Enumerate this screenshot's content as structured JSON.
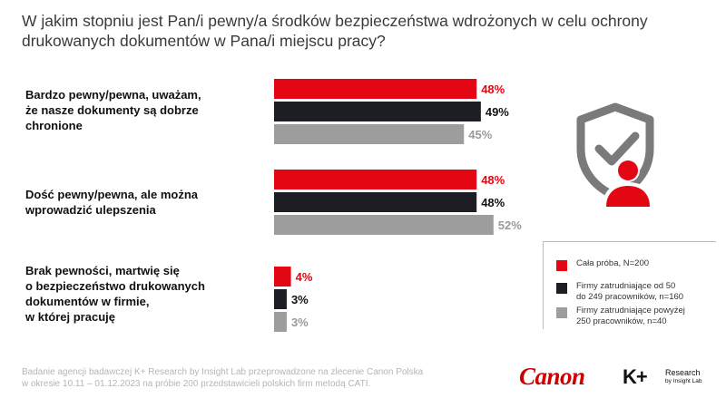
{
  "colors": {
    "series_red": "#e30613",
    "series_dark": "#1d1d24",
    "series_gray": "#9d9d9d",
    "label_red": "#e30613",
    "label_dark": "#111111",
    "label_gray": "#9a9a9a",
    "icon_gray": "#7a7a7a",
    "icon_red": "#e30613"
  },
  "chart_data": {
    "type": "bar",
    "orientation": "horizontal",
    "title": "W jakim stopniu jest Pan/i pewny/a środków bezpieczeństwa wdrożonych w celu ochrony drukowanych dokumentów w Pana/i miejscu pracy?",
    "title_lines": [
      "W jakim stopniu jest Pan/i pewny/a środków bezpieczeństwa wdrożonych w celu ochrony",
      "drukowanych dokumentów w Pana/i miejscu pracy?"
    ],
    "categories": [
      {
        "name": "Bardzo pewny/pewna, uważam, że nasze dokumenty są dobrze chronione",
        "lines": [
          "Bardzo pewny/pewna, uważam,",
          "że nasze dokumenty są dobrze",
          "chronione"
        ]
      },
      {
        "name": "Dość pewny/pewna, ale można wprowadzić ulepszenia",
        "lines": [
          "Dość pewny/pewna, ale można",
          "wprowadzić ulepszenia"
        ]
      },
      {
        "name": "Brak pewności, martwię się o bezpieczeństwo drukowanych dokumentów w firmie, w której pracuję",
        "lines": [
          "Brak pewności, martwię się",
          "o bezpieczeństwo drukowanych",
          "dokumentów w firmie,",
          "w której pracuję"
        ]
      }
    ],
    "series": [
      {
        "name": "Cała próba, N=200",
        "legend_lines": [
          "Cała próba, N=200"
        ],
        "color_key": "series_red",
        "label_key": "label_red",
        "values": [
          48,
          48,
          4
        ]
      },
      {
        "name": "Firmy zatrudniające od 50 do 249 pracowników, n=160",
        "legend_lines": [
          "Firmy zatrudniające od 50",
          "do 249 pracowników, n=160"
        ],
        "color_key": "series_dark",
        "label_key": "label_dark",
        "values": [
          49,
          48,
          3
        ]
      },
      {
        "name": "Firmy zatrudniające powyżej 250 pracowników, n=40",
        "legend_lines": [
          "Firmy zatrudniające powyżej",
          "250 pracowników, n=40"
        ],
        "color_key": "series_gray",
        "label_key": "label_gray",
        "values": [
          45,
          52,
          3
        ]
      }
    ],
    "value_suffix": "%",
    "xlim": [
      0,
      100
    ],
    "grid": false,
    "legend_position": "bottom-right"
  },
  "footer": {
    "lines": [
      "Badanie agencji badawczej K+ Research by Insight Lab przeprowadzone na zlecenie Canon Polska",
      "w okresie 10.11 – 01.12.2023 na próbie 200 przedstawicieli polskich firm metodą CATI."
    ]
  },
  "logos": {
    "canon": "Canon",
    "kplus_mark": "K+",
    "kplus_name": "Research",
    "kplus_sub": "by Insight Lab"
  },
  "icons": {
    "security_user": "shield-check-user-icon"
  }
}
